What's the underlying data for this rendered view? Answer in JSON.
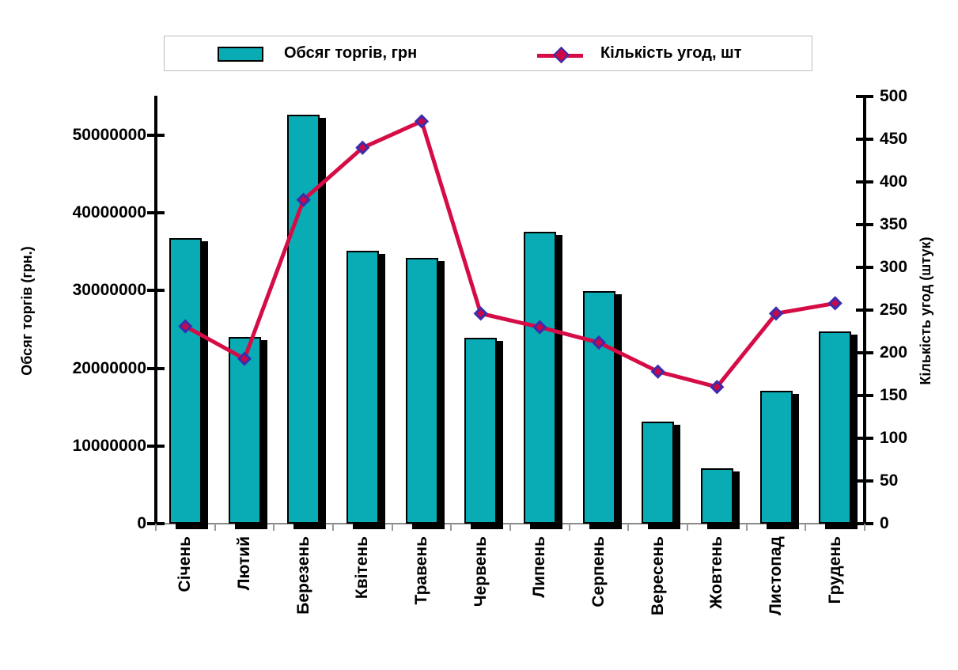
{
  "chart_data": {
    "type": "combo_bar_line",
    "categories": [
      "Січень",
      "Лютий",
      "Березень",
      "Квітень",
      "Травень",
      "Червень",
      "Липень",
      "Серпень",
      "Вересень",
      "Жовтень",
      "Листопад",
      "Грудень"
    ],
    "series": [
      {
        "name": "Обсяг торгів, грн",
        "type": "bar",
        "axis": "left",
        "values": [
          36800000,
          24000000,
          52700000,
          35100000,
          34200000,
          23900000,
          37600000,
          29900000,
          13100000,
          7100000,
          17100000,
          24700000
        ]
      },
      {
        "name": "Кількість угод, шт",
        "type": "line",
        "axis": "right",
        "values": [
          231,
          193,
          379,
          440,
          471,
          246,
          230,
          212,
          178,
          160,
          246,
          258
        ]
      }
    ],
    "left_axis": {
      "title": "Обсяг торгів (грн.)",
      "min": 0,
      "max": 55000000,
      "tick_step": 10000000,
      "tick_labels": [
        "0",
        "10000000",
        "20000000",
        "30000000",
        "40000000",
        "50000000"
      ]
    },
    "right_axis": {
      "title": "Кількість угод (штук)",
      "min": 0,
      "max": 500,
      "tick_step": 50,
      "tick_labels": [
        "0",
        "50",
        "100",
        "150",
        "200",
        "250",
        "300",
        "350",
        "400",
        "450",
        "500"
      ]
    },
    "legend": {
      "position": "top",
      "items": [
        {
          "label": "Обсяг торгів, грн",
          "swatch": "bar"
        },
        {
          "label": "Кількість угод, шт",
          "swatch": "line-diamond"
        }
      ]
    },
    "grid": "off",
    "colors": {
      "bar_fill": "#09acb4",
      "bar_border": "#000000",
      "bar_shadow": "#000000",
      "line": "#d50c46",
      "marker_fill": "#cb0747",
      "marker_border": "#3c2dac",
      "axis": "#000000",
      "baseline": "#8a8a8a",
      "legend_border": "#bdbdbd",
      "background": "#ffffff",
      "text": "#000000"
    }
  }
}
